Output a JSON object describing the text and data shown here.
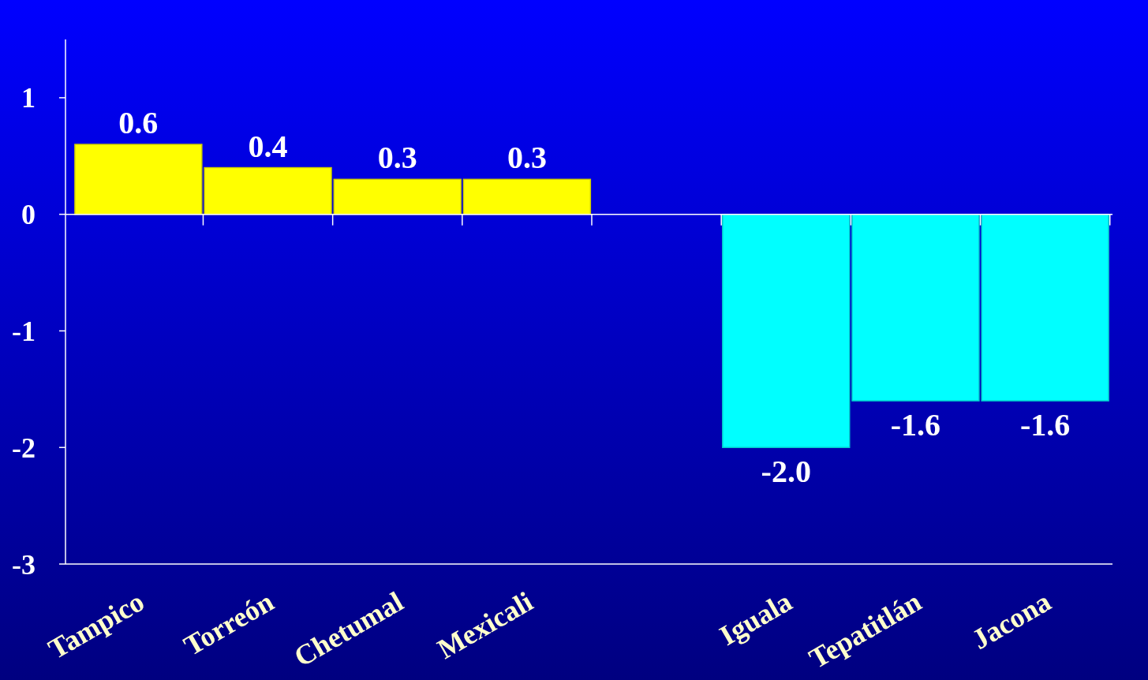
{
  "chart_data": {
    "type": "bar",
    "categories": [
      "Tampico",
      "Torreón",
      "Chetumal",
      "Mexicali",
      null,
      "Iguala",
      "Tepatitlán",
      "Jacona"
    ],
    "values": [
      0.6,
      0.4,
      0.3,
      0.3,
      null,
      -2.0,
      -1.6,
      -1.6
    ],
    "colors": [
      "#ffff00",
      "#ffff00",
      "#ffff00",
      "#ffff00",
      null,
      "#00ffff",
      "#00ffff",
      "#00ffff"
    ],
    "value_labels": [
      "0.6",
      "0.4",
      "0.3",
      "0.3",
      null,
      "-2.0",
      "-1.6",
      "-1.6"
    ],
    "ylim": [
      -3,
      1.5
    ],
    "yticks": [
      -3,
      -2,
      -1,
      0,
      1
    ]
  }
}
